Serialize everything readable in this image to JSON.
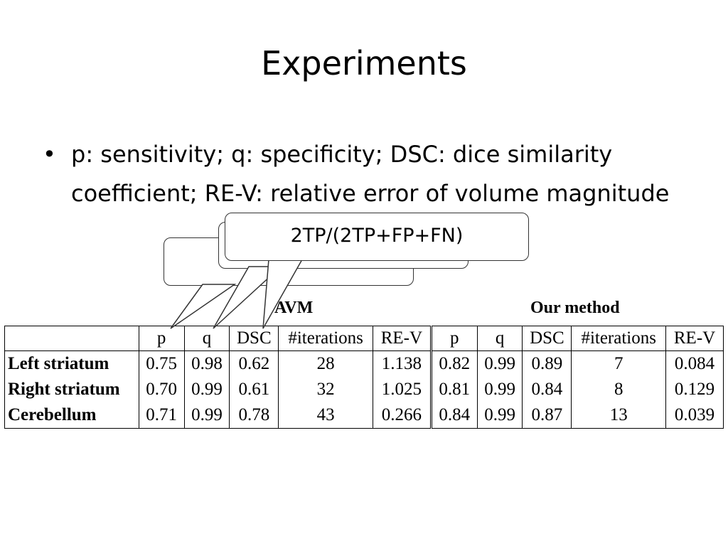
{
  "slide": {
    "title": "Experiments",
    "bullet": "p: sensitivity; q: specificity; DSC: dice similarity coefficient; RE-V: relative error of volume magnitude"
  },
  "table": {
    "group_left": "AVM",
    "group_right": "Our method",
    "headers": [
      "",
      "p",
      "q",
      "DSC",
      "#iterations",
      "RE-V",
      "p",
      "q",
      "DSC",
      "#iterations",
      "RE-V"
    ],
    "rows": [
      [
        "Left striatum",
        "0.75",
        "0.98",
        "0.62",
        "28",
        "1.138",
        "0.82",
        "0.99",
        "0.89",
        "7",
        "0.084"
      ],
      [
        "Right striatum",
        "0.70",
        "0.99",
        "0.61",
        "32",
        "1.025",
        "0.81",
        "0.99",
        "0.84",
        "8",
        "0.129"
      ],
      [
        "Cerebellum",
        "0.71",
        "0.99",
        "0.78",
        "43",
        "0.266",
        "0.84",
        "0.99",
        "0.87",
        "13",
        "0.039"
      ]
    ]
  },
  "callouts": {
    "front": "2TP/(2TP+FP+FN)"
  }
}
